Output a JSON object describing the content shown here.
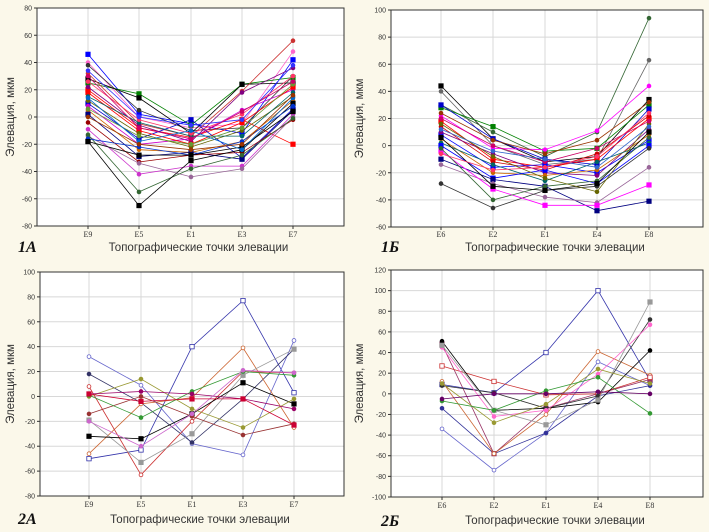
{
  "figure": {
    "panels": [
      "1A",
      "1Б",
      "2A",
      "2Б"
    ]
  },
  "chart_data": [
    {
      "id": "1A",
      "type": "line",
      "panel_label": "1A",
      "title": "",
      "xlabel": "Топографические точки элевации",
      "ylabel": "Элевация, мкм",
      "categories": [
        "E9",
        "E5",
        "E1",
        "E3",
        "E7"
      ],
      "ylim": [
        -80,
        80
      ],
      "yticks": [
        -80,
        -60,
        -40,
        -20,
        0,
        20,
        40,
        60,
        80
      ],
      "grid": true,
      "legend": "none",
      "series_count_note": "dense bundle of many individual series; representative subset listed",
      "series": [
        {
          "name": "s1",
          "color": "#0000ff",
          "marker": "square",
          "values": [
            46,
            2,
            -5,
            -12,
            42
          ]
        },
        {
          "name": "s2",
          "color": "#ff66cc",
          "marker": "circle",
          "values": [
            40,
            0,
            -8,
            -5,
            48
          ]
        },
        {
          "name": "s3",
          "color": "#333333",
          "marker": "circle",
          "values": [
            38,
            5,
            -10,
            -8,
            30
          ]
        },
        {
          "name": "s4",
          "color": "#008000",
          "marker": "square",
          "values": [
            25,
            17,
            -6,
            24,
            29
          ]
        },
        {
          "name": "s5",
          "color": "#000000",
          "marker": "square",
          "values": [
            28,
            14,
            -12,
            24,
            25
          ]
        },
        {
          "name": "s6",
          "color": "#cc3333",
          "marker": "circle",
          "values": [
            32,
            -5,
            -14,
            19,
            56
          ]
        },
        {
          "name": "s7",
          "color": "#ff0000",
          "marker": "square",
          "values": [
            20,
            -8,
            -15,
            -2,
            -20
          ]
        },
        {
          "name": "s8",
          "color": "#800080",
          "marker": "circle",
          "values": [
            22,
            -6,
            -18,
            18,
            36
          ]
        },
        {
          "name": "s9",
          "color": "#0000cc",
          "marker": "square",
          "values": [
            10,
            -16,
            -2,
            -30,
            6
          ]
        },
        {
          "name": "s10",
          "color": "#cc00cc",
          "marker": "circle",
          "values": [
            8,
            -20,
            -16,
            5,
            20
          ]
        },
        {
          "name": "s11",
          "color": "#ff0000",
          "marker": "square",
          "values": [
            18,
            -10,
            -20,
            -4,
            22
          ]
        },
        {
          "name": "s12",
          "color": "#666600",
          "marker": "circle",
          "values": [
            12,
            -12,
            -22,
            -10,
            15
          ]
        },
        {
          "name": "s13",
          "color": "#006666",
          "marker": "circle",
          "values": [
            15,
            -4,
            -14,
            -14,
            18
          ]
        },
        {
          "name": "s14",
          "color": "#cc6600",
          "marker": "circle",
          "values": [
            5,
            -24,
            -26,
            -18,
            12
          ]
        },
        {
          "name": "s15",
          "color": "#000080",
          "marker": "square",
          "values": [
            2,
            -29,
            -26,
            -31,
            5
          ]
        },
        {
          "name": "s16",
          "color": "#990000",
          "marker": "circle",
          "values": [
            -4,
            -33,
            -28,
            -26,
            -2
          ]
        },
        {
          "name": "s17",
          "color": "#cc33cc",
          "marker": "circle",
          "values": [
            -9,
            -42,
            -36,
            -36,
            2
          ]
        },
        {
          "name": "s18",
          "color": "#996699",
          "marker": "circle",
          "values": [
            -14,
            -34,
            -44,
            -38,
            0
          ]
        },
        {
          "name": "s19",
          "color": "#336633",
          "marker": "circle",
          "values": [
            -13,
            -55,
            -38,
            -28,
            -1
          ]
        },
        {
          "name": "s20",
          "color": "#000000",
          "marker": "square",
          "values": [
            -18,
            -65,
            -32,
            -24,
            10
          ]
        },
        {
          "name": "s21",
          "color": "#0033cc",
          "marker": "circle",
          "values": [
            -16,
            -22,
            -28,
            -18,
            8
          ]
        },
        {
          "name": "s22",
          "color": "#000000",
          "marker": "square",
          "values": [
            -18,
            -28,
            -28,
            -22,
            4
          ]
        },
        {
          "name": "s23",
          "color": "#ff3366",
          "marker": "circle",
          "values": [
            26,
            -2,
            -12,
            2,
            30
          ]
        },
        {
          "name": "s24",
          "color": "#3333ff",
          "marker": "circle",
          "values": [
            34,
            0,
            -6,
            -2,
            38
          ]
        },
        {
          "name": "s25",
          "color": "#669933",
          "marker": "circle",
          "values": [
            6,
            -14,
            -20,
            -8,
            24
          ]
        },
        {
          "name": "s26",
          "color": "#cc0066",
          "marker": "circle",
          "values": [
            30,
            -8,
            -16,
            4,
            26
          ]
        },
        {
          "name": "s27",
          "color": "#0066cc",
          "marker": "circle",
          "values": [
            14,
            -18,
            -10,
            -24,
            14
          ]
        },
        {
          "name": "s28",
          "color": "#993300",
          "marker": "circle",
          "values": [
            0,
            -20,
            -24,
            -20,
            16
          ]
        }
      ]
    },
    {
      "id": "1Б",
      "type": "line",
      "panel_label": "1Б",
      "title": "",
      "xlabel": "Топографические точки элевации",
      "ylabel": "Элевация, мкм",
      "categories": [
        "E6",
        "E2",
        "E1",
        "E4",
        "E8"
      ],
      "ylim": [
        -60,
        100
      ],
      "yticks": [
        -60,
        -40,
        -20,
        0,
        20,
        40,
        60,
        80,
        100
      ],
      "grid": true,
      "legend": "none",
      "series_count_note": "dense bundle of many individual series; representative subset listed",
      "series": [
        {
          "name": "s1",
          "color": "#000000",
          "marker": "square",
          "values": [
            44,
            5,
            -12,
            -8,
            34
          ]
        },
        {
          "name": "s2",
          "color": "#666666",
          "marker": "circle",
          "values": [
            40,
            0,
            -14,
            -10,
            63
          ]
        },
        {
          "name": "s3",
          "color": "#336633",
          "marker": "circle",
          "values": [
            30,
            10,
            -8,
            10,
            94
          ]
        },
        {
          "name": "s4",
          "color": "#008000",
          "marker": "square",
          "values": [
            28,
            14,
            -4,
            -2,
            30
          ]
        },
        {
          "name": "s5",
          "color": "#0000cc",
          "marker": "square",
          "values": [
            30,
            5,
            -10,
            -14,
            27
          ]
        },
        {
          "name": "s6",
          "color": "#ff00ff",
          "marker": "circle",
          "values": [
            22,
            -2,
            -3,
            11,
            44
          ]
        },
        {
          "name": "s7",
          "color": "#ff0000",
          "marker": "square",
          "values": [
            18,
            -10,
            -16,
            -10,
            20
          ]
        },
        {
          "name": "s8",
          "color": "#cc0000",
          "marker": "circle",
          "values": [
            14,
            -12,
            -18,
            -6,
            22
          ]
        },
        {
          "name": "s9",
          "color": "#0000ff",
          "marker": "square",
          "values": [
            8,
            -16,
            -14,
            -20,
            4
          ]
        },
        {
          "name": "s10",
          "color": "#800080",
          "marker": "circle",
          "values": [
            10,
            -6,
            -20,
            -22,
            12
          ]
        },
        {
          "name": "s11",
          "color": "#cc6600",
          "marker": "circle",
          "values": [
            5,
            -20,
            -22,
            -18,
            8
          ]
        },
        {
          "name": "s12",
          "color": "#006666",
          "marker": "circle",
          "values": [
            2,
            -14,
            -26,
            -12,
            2
          ]
        },
        {
          "name": "s13",
          "color": "#0000ff",
          "marker": "square",
          "values": [
            0,
            -24,
            -18,
            -28,
            0
          ]
        },
        {
          "name": "s14",
          "color": "#000080",
          "marker": "square",
          "values": [
            -10,
            -25,
            -30,
            -48,
            -41
          ]
        },
        {
          "name": "s15",
          "color": "#996699",
          "marker": "circle",
          "values": [
            -14,
            -28,
            -38,
            -42,
            -16
          ]
        },
        {
          "name": "s16",
          "color": "#333333",
          "marker": "circle",
          "values": [
            -28,
            -46,
            -33,
            -30,
            -2
          ]
        },
        {
          "name": "s17",
          "color": "#ff00ff",
          "marker": "square",
          "values": [
            -4,
            -32,
            -44,
            -44,
            -29
          ]
        },
        {
          "name": "s18",
          "color": "#336633",
          "marker": "circle",
          "values": [
            -2,
            -40,
            -30,
            -26,
            6
          ]
        },
        {
          "name": "s19",
          "color": "#000000",
          "marker": "square",
          "values": [
            6,
            -30,
            -33,
            -28,
            10
          ]
        },
        {
          "name": "s20",
          "color": "#666600",
          "marker": "circle",
          "values": [
            16,
            -8,
            -24,
            -34,
            16
          ]
        },
        {
          "name": "s21",
          "color": "#cc0066",
          "marker": "circle",
          "values": [
            20,
            0,
            -12,
            -2,
            18
          ]
        },
        {
          "name": "s22",
          "color": "#3366cc",
          "marker": "circle",
          "values": [
            12,
            -4,
            -10,
            -16,
            14
          ]
        },
        {
          "name": "s23",
          "color": "#ff3366",
          "marker": "circle",
          "values": [
            -6,
            -18,
            -16,
            -8,
            24
          ]
        },
        {
          "name": "s24",
          "color": "#993300",
          "marker": "circle",
          "values": [
            24,
            4,
            -6,
            4,
            32
          ]
        }
      ]
    },
    {
      "id": "2A",
      "type": "line",
      "panel_label": "2A",
      "title": "",
      "xlabel": "Топографические точки элевации",
      "ylabel": "Элевация, мкм",
      "categories": [
        "E9",
        "E5",
        "E1",
        "E3",
        "E7"
      ],
      "ylim": [
        -80,
        100
      ],
      "yticks": [
        -80,
        -60,
        -40,
        -20,
        0,
        20,
        40,
        60,
        80,
        100
      ],
      "grid": true,
      "legend": "none",
      "series": [
        {
          "name": "s1",
          "color": "#3333aa",
          "marker": "open-square",
          "values": [
            -50,
            -43,
            40,
            77,
            3
          ]
        },
        {
          "name": "s2",
          "color": "#6666cc",
          "marker": "open-circle",
          "values": [
            32,
            9,
            -38,
            -47,
            45
          ]
        },
        {
          "name": "s3",
          "color": "#333366",
          "marker": "circle",
          "values": [
            18,
            -5,
            -37,
            -2,
            38
          ]
        },
        {
          "name": "s4",
          "color": "#cc6633",
          "marker": "open-circle",
          "values": [
            -46,
            -6,
            -1,
            39,
            -25
          ]
        },
        {
          "name": "s5",
          "color": "#cc3333",
          "marker": "open-circle",
          "values": [
            8,
            -63,
            -20,
            20,
            19
          ]
        },
        {
          "name": "s6",
          "color": "#999999",
          "marker": "square",
          "values": [
            -19,
            -53,
            -30,
            17,
            38
          ]
        },
        {
          "name": "s7",
          "color": "#000000",
          "marker": "square",
          "values": [
            -32,
            -34,
            -14,
            11,
            -6
          ]
        },
        {
          "name": "s8",
          "color": "#993333",
          "marker": "circle",
          "values": [
            -14,
            0,
            -16,
            -31,
            -22
          ]
        },
        {
          "name": "s9",
          "color": "#999933",
          "marker": "circle",
          "values": [
            0,
            14,
            -10,
            -25,
            -2
          ]
        },
        {
          "name": "s10",
          "color": "#339933",
          "marker": "circle",
          "values": [
            1,
            -17,
            4,
            20,
            17
          ]
        },
        {
          "name": "s11",
          "color": "#990066",
          "marker": "circle",
          "values": [
            2,
            4,
            2,
            -2,
            -10
          ]
        },
        {
          "name": "s12",
          "color": "#cc66cc",
          "marker": "circle",
          "values": [
            -20,
            -40,
            -14,
            21,
            19
          ]
        },
        {
          "name": "s13",
          "color": "#cc0033",
          "marker": "square",
          "values": [
            2,
            -4,
            -2,
            -2,
            -23
          ]
        }
      ]
    },
    {
      "id": "2Б",
      "type": "line",
      "panel_label": "2Б",
      "title": "",
      "xlabel": "Топографические точки элевации",
      "ylabel": "Элевация, мкм",
      "categories": [
        "E6",
        "E2",
        "E1",
        "E4",
        "E8"
      ],
      "ylim": [
        -100,
        120
      ],
      "yticks": [
        -100,
        -80,
        -60,
        -40,
        -20,
        0,
        20,
        40,
        60,
        80,
        100,
        120
      ],
      "grid": true,
      "legend": "none",
      "series": [
        {
          "name": "s1",
          "color": "#3333aa",
          "marker": "open-square",
          "values": [
            9,
            1,
            40,
            100,
            13
          ]
        },
        {
          "name": "s2",
          "color": "#6666cc",
          "marker": "open-circle",
          "values": [
            -34,
            -74,
            -38,
            31,
            8
          ]
        },
        {
          "name": "s3",
          "color": "#333399",
          "marker": "circle",
          "values": [
            -14,
            -58,
            -38,
            -2,
            8
          ]
        },
        {
          "name": "s4",
          "color": "#993366",
          "marker": "square",
          "values": [
            48,
            -58,
            -14,
            0,
            14
          ]
        },
        {
          "name": "s5",
          "color": "#cc6633",
          "marker": "open-circle",
          "values": [
            12,
            -58,
            -20,
            41,
            18
          ]
        },
        {
          "name": "s6",
          "color": "#cc3333",
          "marker": "open-square",
          "values": [
            27,
            12,
            -1,
            0,
            16
          ]
        },
        {
          "name": "s7",
          "color": "#000000",
          "marker": "circle",
          "values": [
            51,
            -16,
            -14,
            -8,
            42
          ]
        },
        {
          "name": "s8",
          "color": "#333333",
          "marker": "circle",
          "values": [
            8,
            1,
            -14,
            -2,
            72
          ]
        },
        {
          "name": "s9",
          "color": "#ff66cc",
          "marker": "circle",
          "values": [
            45,
            -22,
            -16,
            19,
            67
          ]
        },
        {
          "name": "s10",
          "color": "#999999",
          "marker": "square",
          "values": [
            47,
            -16,
            -30,
            -6,
            89
          ]
        },
        {
          "name": "s11",
          "color": "#999933",
          "marker": "circle",
          "values": [
            10,
            -28,
            -10,
            24,
            10
          ]
        },
        {
          "name": "s12",
          "color": "#339933",
          "marker": "circle",
          "values": [
            -7,
            -16,
            3,
            16,
            -19
          ]
        },
        {
          "name": "s13",
          "color": "#660066",
          "marker": "circle",
          "values": [
            -5,
            0,
            0,
            2,
            0
          ]
        }
      ]
    }
  ]
}
